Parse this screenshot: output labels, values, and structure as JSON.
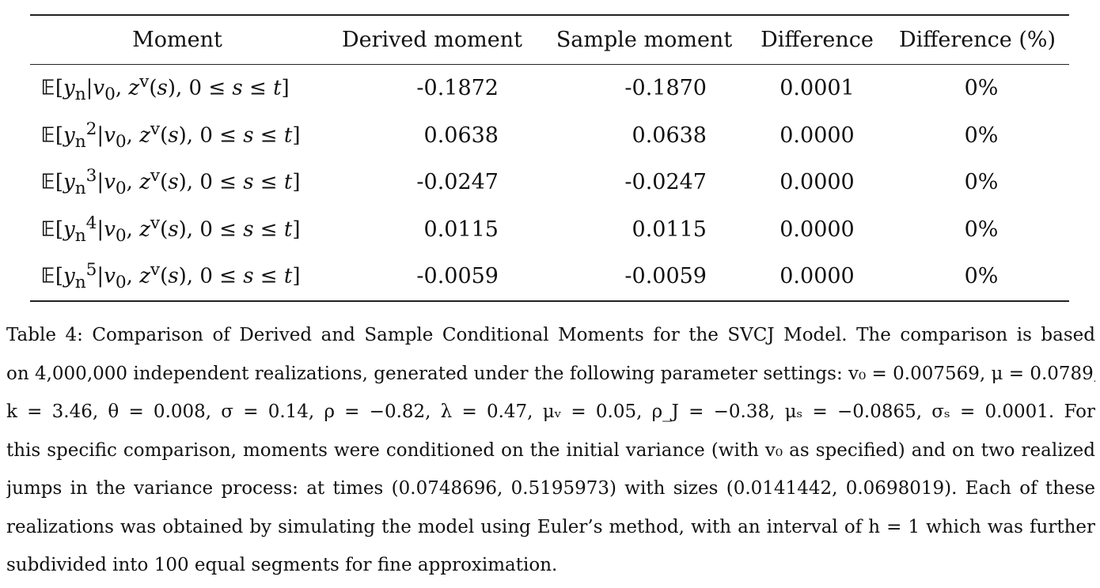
{
  "table": {
    "headers": [
      "Moment",
      "Derived moment",
      "Sample moment",
      "Difference",
      "Difference (%)"
    ],
    "rows": [
      {
        "moment": "𝔼[y_n|v₀, z^v(s), 0 ≤ s ≤ t]",
        "moment_html": "E[y<sub>n</sub>|v<sub>0</sub>, z<sup>v</sup>(s), 0 ≤ s ≤ t]",
        "derived": "-0.1872",
        "sample": "-0.1870",
        "difference": "0.0001",
        "difference_pct": "0%"
      },
      {
        "moment": "𝔼[y_n²|v₀, z^v(s), 0 ≤ s ≤ t]",
        "moment_html": "E[y<sub>n</sub><sup>2</sup>|v<sub>0</sub>, z<sup>v</sup>(s), 0 ≤ s ≤ t]",
        "derived": "0.0638",
        "sample": "0.0638",
        "difference": "0.0000",
        "difference_pct": "0%"
      },
      {
        "moment": "𝔼[y_n³|v₀, z^v(s), 0 ≤ s ≤ t]",
        "moment_html": "E[y<sub>n</sub><sup>3</sup>|v<sub>0</sub>, z<sup>v</sup>(s), 0 ≤ s ≤ t]",
        "derived": "-0.0247",
        "sample": "-0.0247",
        "difference": "0.0000",
        "difference_pct": "0%"
      },
      {
        "moment": "𝔼[y_n⁴|v₀, z^v(s), 0 ≤ s ≤ t]",
        "moment_html": "E[y<sub>n</sub><sup>4</sup>|v<sub>0</sub>, z<sup>v</sup>(s), 0 ≤ s ≤ t]",
        "derived": "0.0115",
        "sample": "0.0115",
        "difference": "0.0000",
        "difference_pct": "0%"
      },
      {
        "moment": "𝔼[y_n⁵|v₀, z^v(s), 0 ≤ s ≤ t]",
        "moment_html": "E[y<sub>n</sub><sup>5</sup>|v<sub>0</sub>, z<sup>v</sup>(s), 0 ≤ s ≤ t]",
        "derived": "-0.0059",
        "sample": "-0.0059",
        "difference": "0.0000",
        "difference_pct": "0%"
      }
    ]
  },
  "caption": {
    "lines": [
      "Table 4:   Comparison of Derived and Sample Conditional Moments for the SVCJ Model. The comparison is based",
      "on 4,000,000 independent realizations, generated under the following parameter settings: v₀ = 0.007569, μ = 0.0789,",
      "k = 3.46,  θ = 0.008,  σ = 0.14,  ρ = −0.82,  λ = 0.47,  μᵥ = 0.05,  ρ_J = −0.38,  μₛ = −0.0865,  σₛ = 0.0001.  For",
      "this specific comparison, moments were conditioned on the initial variance (with v₀ as specified) and on two realized",
      "jumps in the variance process: at times (0.0748696, 0.5195973) with sizes (0.0141442, 0.0698019).  Each of these",
      "realizations was obtained by simulating the model using Euler’s method, with an interval of h = 1 which was further",
      "subdivided into 100 equal segments for fine approximation."
    ]
  }
}
